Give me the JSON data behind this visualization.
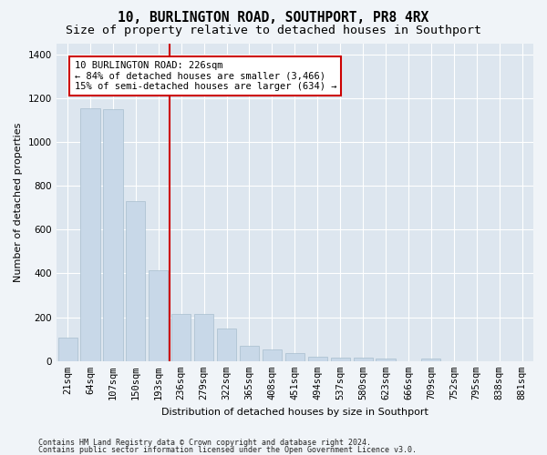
{
  "title": "10, BURLINGTON ROAD, SOUTHPORT, PR8 4RX",
  "subtitle": "Size of property relative to detached houses in Southport",
  "xlabel": "Distribution of detached houses by size in Southport",
  "ylabel": "Number of detached properties",
  "categories": [
    "21sqm",
    "64sqm",
    "107sqm",
    "150sqm",
    "193sqm",
    "236sqm",
    "279sqm",
    "322sqm",
    "365sqm",
    "408sqm",
    "451sqm",
    "494sqm",
    "537sqm",
    "580sqm",
    "623sqm",
    "666sqm",
    "709sqm",
    "752sqm",
    "795sqm",
    "838sqm",
    "881sqm"
  ],
  "values": [
    107,
    1155,
    1148,
    730,
    415,
    215,
    215,
    148,
    68,
    52,
    35,
    22,
    17,
    14,
    12,
    0,
    13,
    0,
    0,
    0,
    0
  ],
  "bar_color": "#c8d8e8",
  "bar_edge_color": "#a8bece",
  "vline_color": "#cc0000",
  "vline_bar_idx": 5,
  "annotation_text": "10 BURLINGTON ROAD: 226sqm\n← 84% of detached houses are smaller (3,466)\n15% of semi-detached houses are larger (634) →",
  "ylim_max": 1450,
  "yticks": [
    0,
    200,
    400,
    600,
    800,
    1000,
    1200,
    1400
  ],
  "fig_facecolor": "#f0f4f8",
  "axes_facecolor": "#dde6ef",
  "grid_color": "#ffffff",
  "footer_line1": "Contains HM Land Registry data © Crown copyright and database right 2024.",
  "footer_line2": "Contains public sector information licensed under the Open Government Licence v3.0.",
  "title_fontsize": 10.5,
  "subtitle_fontsize": 9.5,
  "axis_label_fontsize": 8,
  "tick_fontsize": 7.5,
  "footer_fontsize": 6,
  "annot_fontsize": 7.5
}
